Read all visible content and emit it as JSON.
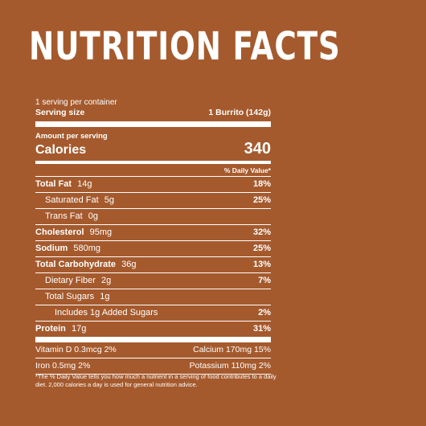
{
  "colors": {
    "background": "#a55a2d",
    "text": "#ffffff"
  },
  "title": "NUTRITION FACTS",
  "servings_per_container": "1 serving per container",
  "serving_size_label": "Serving size",
  "serving_size_value": "1 Burrito (142g)",
  "amount_per_serving": "Amount per serving",
  "calories_label": "Calories",
  "calories_value": "340",
  "daily_value_header": "% Daily Value*",
  "nutrients": [
    {
      "label": "Total Fat",
      "amount": "14g",
      "pct": "18%"
    },
    {
      "label": "Saturated Fat",
      "amount": "5g",
      "pct": "25%"
    },
    {
      "label": "Trans Fat",
      "amount": "0g",
      "pct": ""
    },
    {
      "label": "Cholesterol",
      "amount": "95mg",
      "pct": "32%"
    },
    {
      "label": "Sodium",
      "amount": "580mg",
      "pct": "25%"
    },
    {
      "label": "Total Carbohydrate",
      "amount": "36g",
      "pct": "13%"
    },
    {
      "label": "Dietary Fiber",
      "amount": "2g",
      "pct": "7%"
    },
    {
      "label": "Total Sugars",
      "amount": "1g",
      "pct": ""
    },
    {
      "label": "Includes 1g Added Sugars",
      "amount": "",
      "pct": "2%"
    },
    {
      "label": "Protein",
      "amount": "17g",
      "pct": "31%"
    }
  ],
  "vitamins": [
    {
      "left": "Vitamin D 0.3mcg 2%",
      "right": "Calcium 170mg 15%"
    },
    {
      "left": "Iron 0.5mg 2%",
      "right": "Potassium 110mg 2%"
    }
  ],
  "footnote": "*The % Daily Value tells you how much a nutrient in a serving of food contributes to a daily diet. 2,000 calories a day is used for general nutrition advice."
}
